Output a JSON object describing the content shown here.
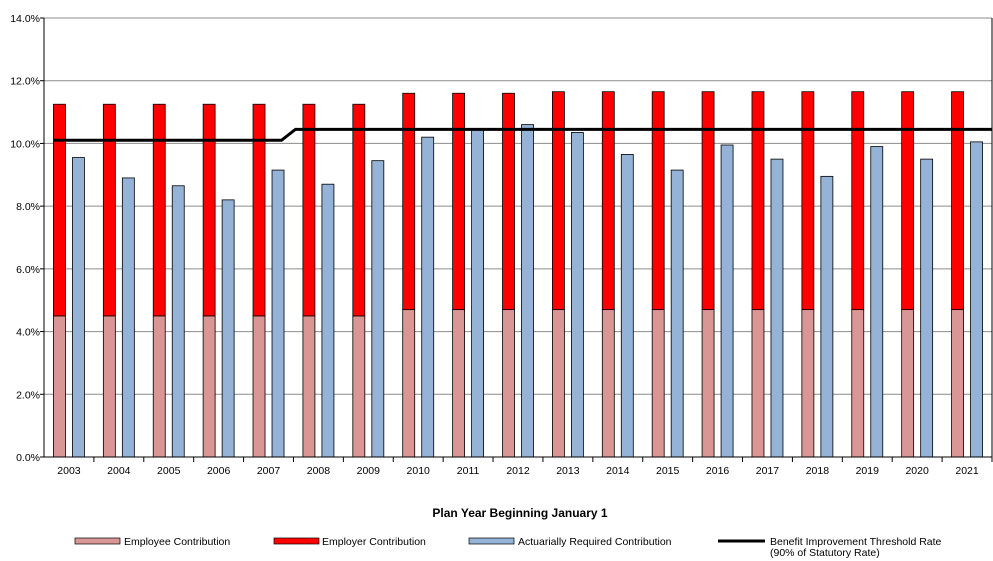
{
  "colors": {
    "employee": "#D99694",
    "employer": "#FF0000",
    "actuarial": "#95B3D7",
    "threshold": "#000000"
  },
  "chart_data": {
    "type": "bar",
    "title": "",
    "xlabel": "Plan Year Beginning January 1",
    "ylabel": "",
    "ylim": [
      0,
      14
    ],
    "yticks": [
      "0.0%",
      "2.0%",
      "4.0%",
      "6.0%",
      "8.0%",
      "10.0%",
      "12.0%",
      "14.0%"
    ],
    "grid": true,
    "legend_position": "bottom",
    "categories": [
      "2003",
      "2004",
      "2005",
      "2006",
      "2007",
      "2008",
      "2009",
      "2010",
      "2011",
      "2012",
      "2013",
      "2014",
      "2015",
      "2016",
      "2017",
      "2018",
      "2019",
      "2020",
      "2021"
    ],
    "series": [
      {
        "name": "Employee Contribution",
        "kind": "stacked-bar",
        "values": [
          4.5,
          4.5,
          4.5,
          4.5,
          4.5,
          4.5,
          4.5,
          4.7,
          4.7,
          4.7,
          4.7,
          4.7,
          4.7,
          4.7,
          4.7,
          4.7,
          4.7,
          4.7,
          4.7
        ]
      },
      {
        "name": "Employer Contribution",
        "kind": "stacked-bar",
        "values": [
          6.75,
          6.75,
          6.75,
          6.75,
          6.75,
          6.75,
          6.75,
          6.9,
          6.9,
          6.9,
          6.95,
          6.95,
          6.95,
          6.95,
          6.95,
          6.95,
          6.95,
          6.95,
          6.95
        ]
      },
      {
        "name": "Actuarially Required Contribution",
        "kind": "bar",
        "values": [
          9.55,
          8.9,
          8.65,
          8.2,
          9.15,
          8.7,
          9.45,
          10.2,
          10.45,
          10.6,
          10.35,
          9.65,
          9.15,
          9.95,
          9.5,
          8.95,
          9.9,
          9.5,
          10.05
        ]
      },
      {
        "name_lines": [
          "Benefit Improvement Threshold Rate",
          "(90% of Statutory Rate)"
        ],
        "kind": "line",
        "values": [
          10.1,
          10.1,
          10.1,
          10.1,
          10.1,
          10.45,
          10.45,
          10.45,
          10.45,
          10.45,
          10.45,
          10.45,
          10.45,
          10.45,
          10.45,
          10.45,
          10.45,
          10.45,
          10.45
        ]
      }
    ]
  }
}
